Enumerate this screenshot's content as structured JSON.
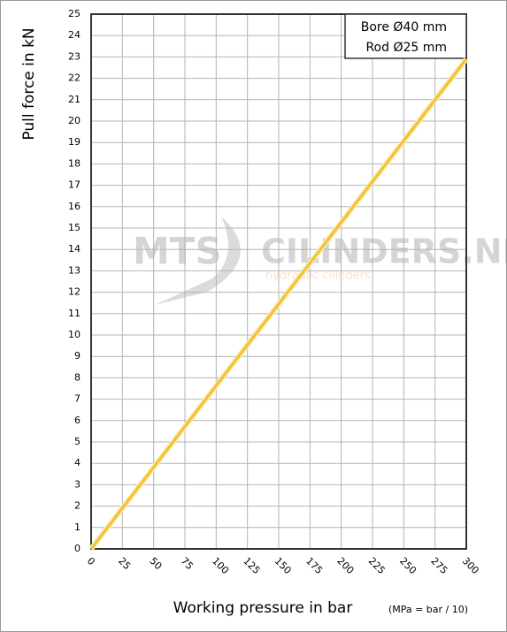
{
  "chart_data": {
    "type": "line",
    "y_label": "Pull force in kN",
    "x_label": "Working pressure in bar",
    "x_note": "(MPa = bar / 10)",
    "annotations": [
      "Bore Ø40 mm",
      "Rod Ø25 mm"
    ],
    "watermark": [
      "MTS",
      "CILINDERS.NL",
      "hydraulic cilinders"
    ],
    "x": [
      0,
      300
    ],
    "series": [
      {
        "name": "Pull force",
        "color": "#f2c232",
        "values": [
          0,
          22.9
        ]
      }
    ],
    "xlim": [
      0,
      300
    ],
    "xticks": [
      0,
      25,
      50,
      75,
      100,
      125,
      150,
      175,
      200,
      225,
      250,
      275,
      300
    ],
    "ylim": [
      0,
      25
    ],
    "yticks": [
      0,
      1,
      2,
      3,
      4,
      5,
      6,
      7,
      8,
      9,
      10,
      11,
      12,
      13,
      14,
      15,
      16,
      17,
      18,
      19,
      20,
      21,
      22,
      23,
      24,
      25
    ],
    "grid": true
  }
}
